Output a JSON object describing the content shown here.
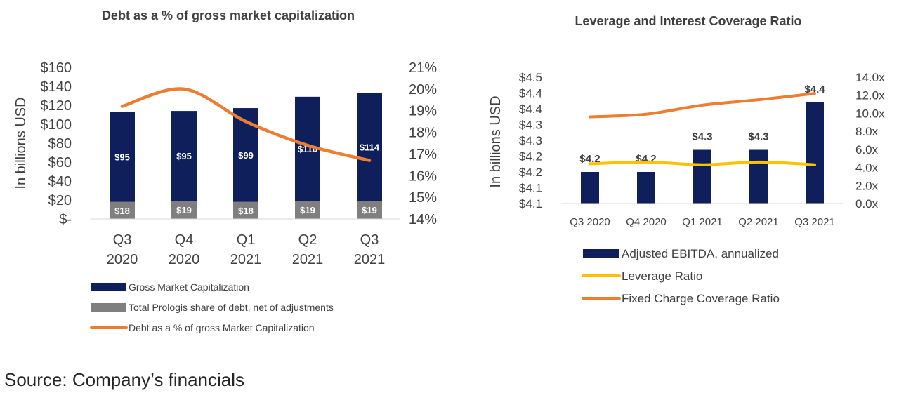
{
  "chart_data": [
    {
      "type": "bar",
      "title": "Debt as a % of gross market capitalization",
      "ylabel": "In billions USD",
      "categories": [
        [
          "Q3",
          "2020"
        ],
        [
          "Q4",
          "2020"
        ],
        [
          "Q1",
          "2021"
        ],
        [
          "Q2",
          "2021"
        ],
        [
          "Q3",
          "2021"
        ]
      ],
      "ylim": [
        0,
        160
      ],
      "y_ticks": [
        "$-",
        "$20",
        "$40",
        "$60",
        "$80",
        "$100",
        "$120",
        "$140",
        "$160"
      ],
      "y2lim": [
        14,
        21
      ],
      "y2_ticks": [
        "14%",
        "15%",
        "16%",
        "17%",
        "18%",
        "19%",
        "20%",
        "21%"
      ],
      "series": [
        {
          "name": "Gross Market Capitalization",
          "kind": "bar",
          "color": "#0f1f5c",
          "values": [
            95,
            95,
            99,
            110,
            114
          ],
          "labels": [
            "$95",
            "$95",
            "$99",
            "$110",
            "$114"
          ]
        },
        {
          "name": "Total Prologis share of debt, net of adjustments",
          "kind": "bar",
          "color": "#7f7f7f",
          "values": [
            18,
            19,
            18,
            19,
            19
          ],
          "labels": [
            "$18",
            "$19",
            "$18",
            "$19",
            "$19"
          ]
        },
        {
          "name": "Debt as a % of gross Market Capitalization",
          "kind": "line",
          "axis": "right",
          "color": "#ed7d31",
          "values": [
            19.2,
            20.0,
            18.5,
            17.4,
            16.7
          ]
        }
      ]
    },
    {
      "type": "bar",
      "title": "Leverage and Interest Coverage Ratio",
      "ylabel": "In billions USD",
      "categories": [
        "Q3 2020",
        "Q4 2020",
        "Q1 2021",
        "Q2 2021",
        "Q3 2021"
      ],
      "ylim": [
        4.1,
        4.5
      ],
      "y_ticks": [
        "$4.1",
        "$4.1",
        "$4.2",
        "$4.2",
        "$4.3",
        "$4.3",
        "$4.4",
        "$4.4",
        "$4.5"
      ],
      "y2lim": [
        0,
        14
      ],
      "y2_ticks": [
        "0.0x",
        "2.0x",
        "4.0x",
        "6.0x",
        "8.0x",
        "10.0x",
        "12.0x",
        "14.0x"
      ],
      "series": [
        {
          "name": "Adjusted EBITDA, annualized",
          "kind": "bar",
          "color": "#0f1f5c",
          "values": [
            4.2,
            4.2,
            4.27,
            4.27,
            4.42
          ],
          "labels": [
            "$4.2",
            "$4.2",
            "$4.3",
            "$4.3",
            "$4.4"
          ]
        },
        {
          "name": "Leverage Ratio",
          "kind": "line",
          "axis": "right",
          "color": "#ffc000",
          "values": [
            4.4,
            4.6,
            4.3,
            4.6,
            4.3
          ]
        },
        {
          "name": "Fixed Charge Coverage Ratio",
          "kind": "line",
          "axis": "right",
          "color": "#ed7d31",
          "values": [
            9.6,
            9.9,
            10.9,
            11.5,
            12.2
          ]
        }
      ]
    }
  ],
  "source": "Source: Company’s financials"
}
